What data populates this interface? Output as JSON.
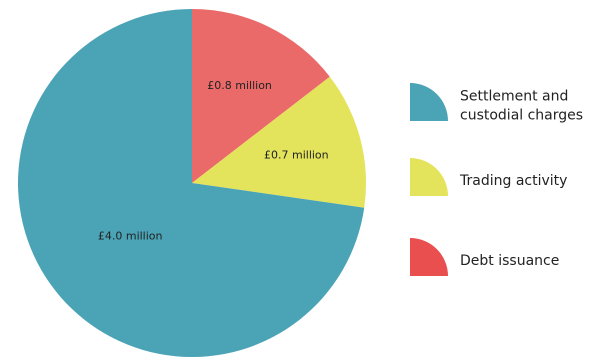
{
  "chart_data": {
    "type": "pie",
    "labels": [
      "Settlement and custodial charges",
      "Trading activity",
      "Debt issuance"
    ],
    "values": [
      4.0,
      0.7,
      0.8
    ],
    "value_labels": [
      "£4.0 million",
      "£0.7 million",
      "£0.8 million"
    ],
    "legend_lines": [
      [
        "Settlement and",
        "custodial charges"
      ],
      [
        "Trading activity"
      ],
      [
        "Debt issuance"
      ]
    ],
    "colors": [
      "#4ba3b6",
      "#e3e45c",
      "#ea6a6a"
    ],
    "legend_swatch_colors": [
      "#4ba3b6",
      "#e3e45c",
      "#ea4f50"
    ],
    "start": "12 o'clock",
    "direction": "clockwise",
    "legend_position": "right"
  }
}
